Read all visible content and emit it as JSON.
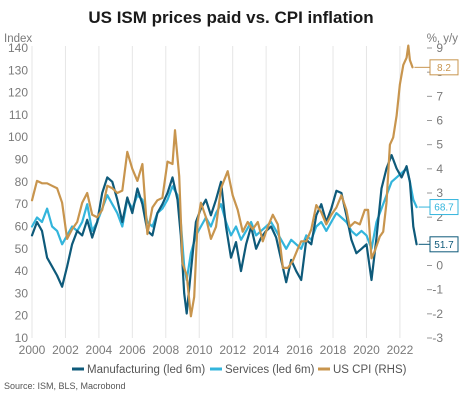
{
  "chart_data": {
    "type": "line",
    "title": "US ISM prices paid vs. CPI inflation",
    "ylabel_left": "Index",
    "ylabel_right": "%, y/y",
    "source": "Source: ISM, BLS, Macrobond",
    "xlim": [
      2000,
      2023.5
    ],
    "ylim_left": [
      10,
      140
    ],
    "ylim_right": [
      -3,
      9
    ],
    "x_ticks": [
      "2000",
      "2002",
      "2004",
      "2006",
      "2008",
      "2010",
      "2012",
      "2014",
      "2016",
      "2018",
      "2020",
      "2022"
    ],
    "y_ticks_left": [
      "140",
      "130",
      "120",
      "110",
      "100",
      "90",
      "80",
      "70",
      "60",
      "50",
      "40",
      "30",
      "20",
      "10"
    ],
    "y_ticks_right": [
      "9",
      "8",
      "7",
      "6",
      "5",
      "4",
      "3",
      "2",
      "1",
      "0",
      "-1",
      "-2",
      "-3"
    ],
    "grid": "vertical",
    "legend_position": "bottom",
    "series": [
      {
        "name": "Manufacturing (led 6m)",
        "axis": "left",
        "color": "#0e5a7a",
        "end_label": "51.7",
        "points": [
          [
            2000.0,
            56
          ],
          [
            2000.3,
            62
          ],
          [
            2000.6,
            58
          ],
          [
            2000.9,
            46
          ],
          [
            2001.2,
            42
          ],
          [
            2001.5,
            38
          ],
          [
            2001.8,
            33
          ],
          [
            2002.1,
            42
          ],
          [
            2002.4,
            52
          ],
          [
            2002.7,
            58
          ],
          [
            2003.0,
            56
          ],
          [
            2003.3,
            63
          ],
          [
            2003.6,
            55
          ],
          [
            2003.9,
            62
          ],
          [
            2004.2,
            75
          ],
          [
            2004.5,
            82
          ],
          [
            2004.8,
            80
          ],
          [
            2005.1,
            72
          ],
          [
            2005.4,
            62
          ],
          [
            2005.7,
            73
          ],
          [
            2006.0,
            66
          ],
          [
            2006.3,
            77
          ],
          [
            2006.6,
            70
          ],
          [
            2006.9,
            58
          ],
          [
            2007.2,
            56
          ],
          [
            2007.5,
            66
          ],
          [
            2007.8,
            70
          ],
          [
            2008.1,
            75
          ],
          [
            2008.4,
            82
          ],
          [
            2008.7,
            72
          ],
          [
            2008.9,
            56
          ],
          [
            2009.1,
            30
          ],
          [
            2009.25,
            21
          ],
          [
            2009.5,
            40
          ],
          [
            2009.8,
            62
          ],
          [
            2010.1,
            68
          ],
          [
            2010.4,
            72
          ],
          [
            2010.7,
            65
          ],
          [
            2011.0,
            72
          ],
          [
            2011.3,
            80
          ],
          [
            2011.6,
            60
          ],
          [
            2011.9,
            46
          ],
          [
            2012.2,
            53
          ],
          [
            2012.5,
            40
          ],
          [
            2012.8,
            52
          ],
          [
            2013.1,
            60
          ],
          [
            2013.4,
            50
          ],
          [
            2013.7,
            55
          ],
          [
            2014.0,
            58
          ],
          [
            2014.3,
            60
          ],
          [
            2014.6,
            55
          ],
          [
            2014.9,
            45
          ],
          [
            2015.2,
            35
          ],
          [
            2015.5,
            45
          ],
          [
            2015.8,
            40
          ],
          [
            2016.1,
            36
          ],
          [
            2016.4,
            54
          ],
          [
            2016.7,
            52
          ],
          [
            2017.0,
            65
          ],
          [
            2017.3,
            70
          ],
          [
            2017.6,
            62
          ],
          [
            2017.9,
            68
          ],
          [
            2018.2,
            76
          ],
          [
            2018.5,
            75
          ],
          [
            2018.8,
            65
          ],
          [
            2019.1,
            54
          ],
          [
            2019.4,
            48
          ],
          [
            2019.7,
            50
          ],
          [
            2020.0,
            52
          ],
          [
            2020.3,
            36
          ],
          [
            2020.6,
            55
          ],
          [
            2020.9,
            77
          ],
          [
            2021.2,
            86
          ],
          [
            2021.5,
            92
          ],
          [
            2021.8,
            86
          ],
          [
            2022.1,
            82
          ],
          [
            2022.4,
            87
          ],
          [
            2022.6,
            80
          ],
          [
            2022.8,
            60
          ],
          [
            2023.0,
            52
          ]
        ]
      },
      {
        "name": "Services (led 6m)",
        "axis": "left",
        "color": "#33b5dc",
        "end_label": "68.7",
        "points": [
          [
            2000.0,
            60
          ],
          [
            2000.3,
            64
          ],
          [
            2000.6,
            62
          ],
          [
            2000.9,
            68
          ],
          [
            2001.2,
            60
          ],
          [
            2001.5,
            58
          ],
          [
            2001.8,
            52
          ],
          [
            2002.1,
            56
          ],
          [
            2002.4,
            60
          ],
          [
            2002.7,
            58
          ],
          [
            2003.0,
            62
          ],
          [
            2003.3,
            70
          ],
          [
            2003.6,
            58
          ],
          [
            2003.9,
            62
          ],
          [
            2004.2,
            68
          ],
          [
            2004.5,
            74
          ],
          [
            2004.8,
            70
          ],
          [
            2005.1,
            66
          ],
          [
            2005.4,
            60
          ],
          [
            2005.7,
            72
          ],
          [
            2006.0,
            68
          ],
          [
            2006.3,
            74
          ],
          [
            2006.6,
            72
          ],
          [
            2006.9,
            62
          ],
          [
            2007.2,
            60
          ],
          [
            2007.5,
            66
          ],
          [
            2007.8,
            68
          ],
          [
            2008.1,
            72
          ],
          [
            2008.4,
            78
          ],
          [
            2008.7,
            74
          ],
          [
            2008.9,
            62
          ],
          [
            2009.1,
            42
          ],
          [
            2009.25,
            36
          ],
          [
            2009.5,
            48
          ],
          [
            2009.8,
            56
          ],
          [
            2010.1,
            60
          ],
          [
            2010.4,
            64
          ],
          [
            2010.7,
            60
          ],
          [
            2011.0,
            66
          ],
          [
            2011.3,
            70
          ],
          [
            2011.6,
            62
          ],
          [
            2011.9,
            56
          ],
          [
            2012.2,
            60
          ],
          [
            2012.5,
            54
          ],
          [
            2012.8,
            58
          ],
          [
            2013.1,
            62
          ],
          [
            2013.4,
            56
          ],
          [
            2013.7,
            58
          ],
          [
            2014.0,
            60
          ],
          [
            2014.3,
            62
          ],
          [
            2014.6,
            58
          ],
          [
            2014.9,
            54
          ],
          [
            2015.2,
            50
          ],
          [
            2015.5,
            54
          ],
          [
            2015.8,
            52
          ],
          [
            2016.1,
            50
          ],
          [
            2016.4,
            56
          ],
          [
            2016.7,
            54
          ],
          [
            2017.0,
            60
          ],
          [
            2017.3,
            62
          ],
          [
            2017.6,
            58
          ],
          [
            2017.9,
            62
          ],
          [
            2018.2,
            66
          ],
          [
            2018.5,
            64
          ],
          [
            2018.8,
            62
          ],
          [
            2019.1,
            58
          ],
          [
            2019.4,
            56
          ],
          [
            2019.7,
            58
          ],
          [
            2020.0,
            56
          ],
          [
            2020.3,
            50
          ],
          [
            2020.6,
            62
          ],
          [
            2020.9,
            68
          ],
          [
            2021.2,
            74
          ],
          [
            2021.5,
            80
          ],
          [
            2021.8,
            82
          ],
          [
            2022.1,
            84
          ],
          [
            2022.4,
            86
          ],
          [
            2022.6,
            80
          ],
          [
            2022.8,
            72
          ],
          [
            2023.0,
            68.7
          ]
        ]
      },
      {
        "name": "US CPI (RHS)",
        "axis": "right",
        "color": "#c8954e",
        "end_label": "8.2",
        "points": [
          [
            2000.0,
            2.7
          ],
          [
            2000.3,
            3.5
          ],
          [
            2000.6,
            3.4
          ],
          [
            2000.9,
            3.4
          ],
          [
            2001.2,
            3.3
          ],
          [
            2001.5,
            3.2
          ],
          [
            2001.8,
            2.6
          ],
          [
            2002.1,
            1.1
          ],
          [
            2002.4,
            1.5
          ],
          [
            2002.7,
            1.8
          ],
          [
            2003.0,
            2.6
          ],
          [
            2003.3,
            3.0
          ],
          [
            2003.6,
            2.1
          ],
          [
            2003.9,
            2.0
          ],
          [
            2004.2,
            2.3
          ],
          [
            2004.5,
            3.3
          ],
          [
            2004.8,
            3.2
          ],
          [
            2005.1,
            3.0
          ],
          [
            2005.4,
            3.1
          ],
          [
            2005.7,
            4.7
          ],
          [
            2006.0,
            4.0
          ],
          [
            2006.3,
            3.5
          ],
          [
            2006.6,
            4.2
          ],
          [
            2006.9,
            1.3
          ],
          [
            2007.2,
            2.4
          ],
          [
            2007.5,
            2.7
          ],
          [
            2007.8,
            2.8
          ],
          [
            2008.1,
            4.3
          ],
          [
            2008.4,
            4.2
          ],
          [
            2008.55,
            5.6
          ],
          [
            2008.8,
            3.7
          ],
          [
            2009.0,
            0.1
          ],
          [
            2009.25,
            -0.4
          ],
          [
            2009.5,
            -2.1
          ],
          [
            2009.7,
            -1.3
          ],
          [
            2009.9,
            1.8
          ],
          [
            2010.1,
            2.6
          ],
          [
            2010.4,
            2.0
          ],
          [
            2010.7,
            1.1
          ],
          [
            2011.0,
            1.6
          ],
          [
            2011.3,
            3.2
          ],
          [
            2011.7,
            3.9
          ],
          [
            2012.0,
            2.9
          ],
          [
            2012.3,
            2.3
          ],
          [
            2012.6,
            1.4
          ],
          [
            2012.9,
            1.8
          ],
          [
            2013.2,
            1.5
          ],
          [
            2013.5,
            1.8
          ],
          [
            2013.8,
            1.0
          ],
          [
            2014.1,
            1.6
          ],
          [
            2014.4,
            2.1
          ],
          [
            2014.7,
            1.7
          ],
          [
            2015.0,
            -0.1
          ],
          [
            2015.3,
            -0.1
          ],
          [
            2015.6,
            0.2
          ],
          [
            2015.9,
            0.7
          ],
          [
            2016.1,
            1.0
          ],
          [
            2016.4,
            1.0
          ],
          [
            2016.7,
            1.5
          ],
          [
            2017.0,
            2.5
          ],
          [
            2017.3,
            2.2
          ],
          [
            2017.6,
            1.7
          ],
          [
            2017.9,
            2.1
          ],
          [
            2018.2,
            2.4
          ],
          [
            2018.5,
            2.9
          ],
          [
            2018.8,
            2.3
          ],
          [
            2019.0,
            1.6
          ],
          [
            2019.3,
            1.8
          ],
          [
            2019.6,
            1.7
          ],
          [
            2019.9,
            2.3
          ],
          [
            2020.1,
            2.3
          ],
          [
            2020.3,
            0.3
          ],
          [
            2020.5,
            0.6
          ],
          [
            2020.8,
            1.2
          ],
          [
            2021.0,
            1.4
          ],
          [
            2021.2,
            2.6
          ],
          [
            2021.4,
            5.0
          ],
          [
            2021.6,
            5.3
          ],
          [
            2021.8,
            6.2
          ],
          [
            2022.0,
            7.5
          ],
          [
            2022.2,
            8.3
          ],
          [
            2022.4,
            8.6
          ],
          [
            2022.5,
            9.1
          ],
          [
            2022.6,
            8.5
          ],
          [
            2022.75,
            8.2
          ]
        ]
      }
    ]
  }
}
